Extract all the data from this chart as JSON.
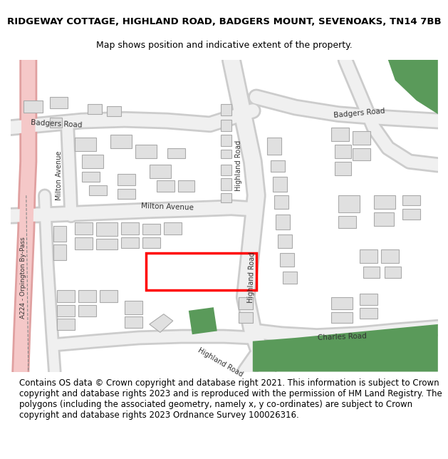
{
  "title_line1": "RIDGEWAY COTTAGE, HIGHLAND ROAD, BADGERS MOUNT, SEVENOAKS, TN14 7BB",
  "title_line2": "Map shows position and indicative extent of the property.",
  "footer_text": "Contains OS data © Crown copyright and database right 2021. This information is subject to Crown copyright and database rights 2023 and is reproduced with the permission of HM Land Registry. The polygons (including the associated geometry, namely x, y co-ordinates) are subject to Crown copyright and database rights 2023 Ordnance Survey 100026316.",
  "map_bg": "#ffffff",
  "green_color": "#5a9a5a",
  "pink_road_color": "#f5c8c8",
  "pink_road_outline": "#e0a0a0",
  "highlight_color": "#ff0000",
  "title_fontsize": 9.5,
  "subtitle_fontsize": 9,
  "footer_fontsize": 8.5,
  "road_color": "#f0f0f0",
  "road_outline": "#cccccc",
  "building_color": "#e0e0e0",
  "building_edge": "#aaaaaa"
}
